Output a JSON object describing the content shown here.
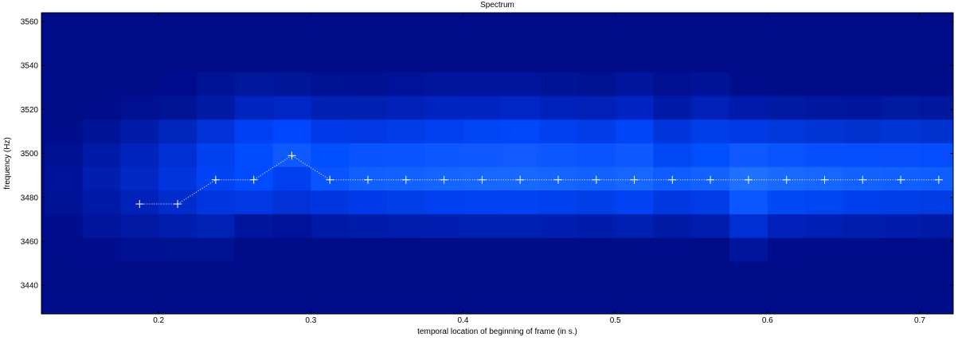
{
  "chart_data": {
    "type": "heatmap",
    "title": "Spectrum",
    "xlabel": "temporal location of beginning of frame (in s.)",
    "ylabel": "frequency (Hz)",
    "xlim": [
      0.123,
      0.722
    ],
    "ylim": [
      3427,
      3564
    ],
    "x_ticks": [
      0.2,
      0.3,
      0.4,
      0.5,
      0.6,
      0.7
    ],
    "x_tick_labels": [
      "0.2",
      "0.3",
      "0.4",
      "0.5",
      "0.6",
      "0.7"
    ],
    "y_ticks": [
      3440,
      3460,
      3480,
      3500,
      3520,
      3540,
      3560
    ],
    "y_tick_labels": [
      "3440",
      "3460",
      "3480",
      "3500",
      "3520",
      "3540",
      "3560"
    ],
    "frame_times": [
      0.1375,
      0.1625,
      0.1875,
      0.2125,
      0.2375,
      0.2625,
      0.2875,
      0.3125,
      0.3375,
      0.3625,
      0.3875,
      0.4125,
      0.4375,
      0.4625,
      0.4875,
      0.5125,
      0.5375,
      0.5625,
      0.5875,
      0.6125,
      0.6375,
      0.6625,
      0.6875,
      0.7125
    ],
    "freq_bins": [
      3563.8,
      3553.1,
      3542.3,
      3531.6,
      3520.8,
      3510.0,
      3499.3,
      3488.5,
      3477.8,
      3467.0,
      3456.2,
      3445.5,
      3434.7
    ],
    "intensity_colors": [
      [
        "#000c88",
        "#000c88",
        "#000c88",
        "#000c88",
        "#000c88",
        "#000c88",
        "#000c88",
        "#000c88",
        "#000c88",
        "#000c88",
        "#000c88",
        "#000c88",
        "#000c88",
        "#000c88",
        "#000c88",
        "#000c88",
        "#000c88",
        "#000c88",
        "#000c88",
        "#000c88",
        "#000c88",
        "#000c88",
        "#000c88",
        "#000c88"
      ],
      [
        "#000c88",
        "#000c88",
        "#000c88",
        "#000c88",
        "#000c88",
        "#000c88",
        "#000c88",
        "#000c88",
        "#000c88",
        "#000c88",
        "#000c88",
        "#000c88",
        "#000c88",
        "#000c88",
        "#000c88",
        "#000c88",
        "#000c88",
        "#000c88",
        "#000c88",
        "#000c88",
        "#000c88",
        "#000c88",
        "#000c88",
        "#000c88"
      ],
      [
        "#000c88",
        "#000c88",
        "#000c88",
        "#000c88",
        "#000c88",
        "#000c88",
        "#000c88",
        "#000c88",
        "#000c88",
        "#000c88",
        "#000c88",
        "#000c88",
        "#000c88",
        "#000c88",
        "#000c88",
        "#000c88",
        "#000c88",
        "#000c88",
        "#000c88",
        "#000c88",
        "#000c88",
        "#000c88",
        "#000c88",
        "#000c88"
      ],
      [
        "#000c88",
        "#000c88",
        "#000c88",
        "#000c8e",
        "#001296",
        "#00189e",
        "#00169a",
        "#001294",
        "#001292",
        "#00129a",
        "#00149e",
        "#00149e",
        "#00149e",
        "#001498",
        "#001294",
        "#00169e",
        "#001090",
        "#00149a",
        "#000e8c",
        "#000c88",
        "#000c88",
        "#000c88",
        "#000c88",
        "#000c88"
      ],
      [
        "#000c88",
        "#000e8c",
        "#001090",
        "#001496",
        "#001aa4",
        "#0024c0",
        "#0026c6",
        "#0020b4",
        "#0020b2",
        "#0022b8",
        "#0024c0",
        "#0024c2",
        "#0026c6",
        "#0022bc",
        "#0020b6",
        "#0024c4",
        "#001aa8",
        "#0020b8",
        "#001aac",
        "#001aa4",
        "#0018a0",
        "#00169e",
        "#001aa0",
        "#00189e"
      ],
      [
        "#000e8c",
        "#001498",
        "#001ca8",
        "#0026bc",
        "#0032d8",
        "#0040f4",
        "#0046ff",
        "#003ae8",
        "#0038e4",
        "#003ce8",
        "#0040f0",
        "#0044f6",
        "#0046fa",
        "#0040f0",
        "#003ce8",
        "#0044f8",
        "#0036dc",
        "#003ee8",
        "#003ae4",
        "#0038dc",
        "#0034d4",
        "#0032d0",
        "#0034d4",
        "#0032d0"
      ],
      [
        "#001092",
        "#001aa8",
        "#0024bc",
        "#0030d4",
        "#0040ee",
        "#004cff",
        "#0e5aff",
        "#0050ff",
        "#0852ff",
        "#0a54ff",
        "#0e58ff",
        "#1058ff",
        "#125aff",
        "#0e58ff",
        "#0a54ff",
        "#1058ff",
        "#0048f4",
        "#0050ff",
        "#1058ff",
        "#0a54ff",
        "#0850ff",
        "#064eff",
        "#084eff",
        "#064cff"
      ],
      [
        "#00129a",
        "#001eb0",
        "#0028c4",
        "#0034dc",
        "#0042f4",
        "#004aff",
        "#0040f0",
        "#0a54ff",
        "#1060ff",
        "#1262ff",
        "#1464ff",
        "#1666ff",
        "#1868ff",
        "#1464ff",
        "#1262ff",
        "#1666ff",
        "#0e5cff",
        "#1262ff",
        "#2070ff",
        "#1a6aff",
        "#1666ff",
        "#1262ff",
        "#1060ff",
        "#0e5eff"
      ],
      [
        "#001296",
        "#001aa8",
        "#0022b8",
        "#002ccc",
        "#0036e0",
        "#0038e4",
        "#0032d8",
        "#0036e0",
        "#003ae8",
        "#003ee8",
        "#0040f0",
        "#0042f2",
        "#0042f4",
        "#0040ee",
        "#003ee8",
        "#0042f4",
        "#0038e0",
        "#003ce8",
        "#0a56ff",
        "#0048f8",
        "#0044f2",
        "#0040ec",
        "#003ee8",
        "#003ce4"
      ],
      [
        "#000e8e",
        "#00149c",
        "#0018a4",
        "#001eae",
        "#0022b4",
        "#00169e",
        "#00129a",
        "#001aa8",
        "#001caa",
        "#001eae",
        "#001eb0",
        "#0020b2",
        "#0020b4",
        "#001eb0",
        "#001caa",
        "#0020b4",
        "#001aa6",
        "#001eae",
        "#0030d4",
        "#0022ba",
        "#0020b4",
        "#001eae",
        "#001caa",
        "#001aa6"
      ],
      [
        "#000c8a",
        "#000e8e",
        "#001092",
        "#001294",
        "#001294",
        "#000c88",
        "#000c88",
        "#000c88",
        "#000c88",
        "#000c88",
        "#000c88",
        "#000c88",
        "#000c88",
        "#000c88",
        "#000c88",
        "#000c88",
        "#000e8c",
        "#000c88",
        "#00169e",
        "#000e8e",
        "#000e8c",
        "#000e8c",
        "#000c8a",
        "#000e8c"
      ],
      [
        "#000c88",
        "#000c88",
        "#000c88",
        "#000c88",
        "#000c88",
        "#000c88",
        "#000c88",
        "#000c88",
        "#000c88",
        "#000c88",
        "#000c88",
        "#000c88",
        "#000c88",
        "#000c88",
        "#000c88",
        "#000c88",
        "#000c88",
        "#000c88",
        "#000c88",
        "#000c88",
        "#000c88",
        "#000c88",
        "#000c88",
        "#000c88"
      ],
      [
        "#000c88",
        "#000c88",
        "#000c88",
        "#000c88",
        "#000c88",
        "#000c88",
        "#000c88",
        "#000c88",
        "#000c88",
        "#000c88",
        "#000c88",
        "#000c88",
        "#000c88",
        "#000c88",
        "#000c88",
        "#000c88",
        "#000c88",
        "#000c88",
        "#000c88",
        "#000c88",
        "#000c88",
        "#000c88",
        "#000c88",
        "#000c88"
      ]
    ],
    "peak_track": {
      "x": [
        0.1875,
        0.2125,
        0.2375,
        0.2625,
        0.2875,
        0.3125,
        0.3375,
        0.3625,
        0.3875,
        0.4125,
        0.4375,
        0.4625,
        0.4875,
        0.5125,
        0.5375,
        0.5625,
        0.5875,
        0.6125,
        0.6375,
        0.6625,
        0.6875,
        0.7125
      ],
      "y": [
        3477,
        3477,
        3488,
        3488,
        3499,
        3488,
        3488,
        3488,
        3488,
        3488,
        3488,
        3488,
        3488,
        3488,
        3488,
        3488,
        3488,
        3488,
        3488,
        3488,
        3488,
        3488
      ],
      "marker": "+",
      "line_style": "dotted",
      "color": "#ffffff"
    },
    "grid": false,
    "legend": "none"
  }
}
